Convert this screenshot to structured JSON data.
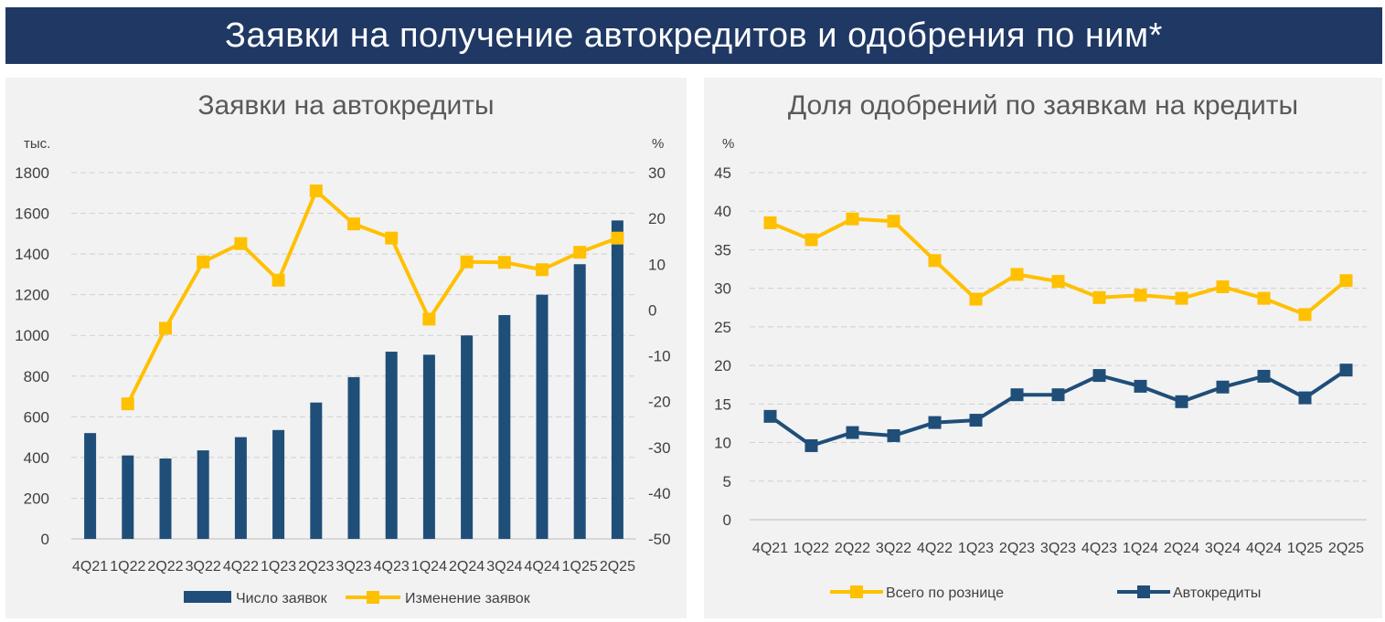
{
  "page_title": "Заявки на получение автокредитов и одобрения по ним*",
  "chart_data": [
    {
      "type": "bar+line",
      "title": "Заявки на автокредиты",
      "categories": [
        "4Q21",
        "1Q22",
        "2Q22",
        "3Q22",
        "4Q22",
        "1Q23",
        "2Q23",
        "3Q23",
        "4Q23",
        "1Q24",
        "2Q24",
        "3Q24",
        "4Q24",
        "1Q25",
        "2Q25"
      ],
      "left_unit": "тыс.",
      "right_unit": "%",
      "left_ticks": [
        "0",
        "200",
        "400",
        "600",
        "800",
        "1000",
        "1200",
        "1400",
        "1600",
        "1800"
      ],
      "right_ticks": [
        "-50",
        "-40",
        "-30",
        "-20",
        "-10",
        "0",
        "10",
        "20",
        "30"
      ],
      "ylim_left": [
        0,
        1800
      ],
      "ylim_right": [
        -50,
        30
      ],
      "grid": true,
      "legend_position": "bottom",
      "series": [
        {
          "name": "Число заявок",
          "kind": "bar",
          "axis": "left",
          "color": "#1f4e79",
          "values": [
            520,
            410,
            395,
            435,
            500,
            535,
            670,
            795,
            920,
            905,
            1000,
            1100,
            1200,
            1350,
            1565
          ]
        },
        {
          "name": "Изменение заявок",
          "kind": "line",
          "axis": "right",
          "color": "#ffc000",
          "values": [
            null,
            -20.5,
            -4,
            10.5,
            14.5,
            6.5,
            26,
            18.8,
            15.7,
            -2,
            10.5,
            10.4,
            8.8,
            12.6,
            15.7
          ]
        }
      ]
    },
    {
      "type": "line",
      "title": "Доля одобрений по заявкам на кредиты",
      "categories": [
        "4Q21",
        "1Q22",
        "2Q22",
        "3Q22",
        "4Q22",
        "1Q23",
        "2Q23",
        "3Q23",
        "4Q23",
        "1Q24",
        "2Q24",
        "3Q24",
        "4Q24",
        "1Q25",
        "2Q25"
      ],
      "y_unit": "%",
      "y_ticks": [
        "0",
        "5",
        "10",
        "15",
        "20",
        "25",
        "30",
        "35",
        "40",
        "45"
      ],
      "ylim": [
        0,
        45
      ],
      "grid": true,
      "legend_position": "bottom",
      "series": [
        {
          "name": "Всего по рознице",
          "color": "#ffc000",
          "values": [
            38.5,
            36.3,
            39.0,
            38.7,
            33.6,
            28.6,
            31.8,
            30.9,
            28.8,
            29.1,
            28.7,
            30.2,
            28.7,
            26.6,
            31.0
          ]
        },
        {
          "name": "Автокредиты",
          "color": "#1f4e79",
          "values": [
            13.4,
            9.6,
            11.3,
            10.9,
            12.6,
            12.9,
            16.2,
            16.2,
            18.7,
            17.3,
            15.3,
            17.2,
            18.6,
            15.8,
            19.4
          ]
        }
      ]
    }
  ]
}
